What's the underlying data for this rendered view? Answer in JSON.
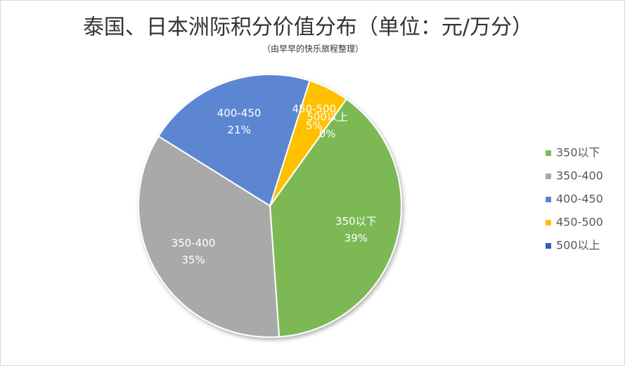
{
  "chart_data": {
    "type": "pie",
    "title": "泰国、日本洲际积分价值分布（单位：元/万分）",
    "subtitle": "（由早早的快乐旅程整理）",
    "categories": [
      "350以下",
      "350-400",
      "400-450",
      "450-500",
      "500以上"
    ],
    "values": [
      39,
      35,
      21,
      5,
      0
    ],
    "value_labels": [
      "39%",
      "35%",
      "21%",
      "5%",
      "0%"
    ],
    "colors": [
      "#7cb955",
      "#a9a9a9",
      "#5b86d1",
      "#ffc000",
      "#2f5cb8"
    ],
    "legend": "right"
  }
}
